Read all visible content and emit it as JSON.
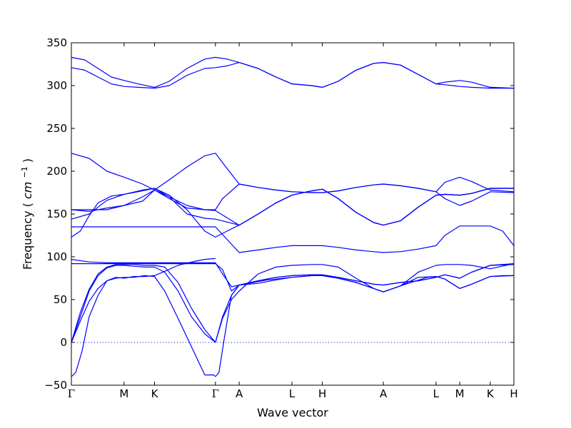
{
  "chart_data": {
    "type": "line",
    "title": "",
    "xlabel": "Wave vector",
    "ylabel": "Frequency",
    "ylabel_unit": "cm",
    "ylabel_unit_power": "−1",
    "ylim": [
      -50,
      350
    ],
    "y_ticks": [
      -50,
      0,
      50,
      100,
      150,
      200,
      250,
      300,
      350
    ],
    "grid": false,
    "legend": "none",
    "line_color": "#0000ff",
    "zero_line": {
      "y": 0,
      "style": "dotted"
    },
    "path_points": [
      {
        "label": "Γ",
        "x": 0.0
      },
      {
        "label": "M",
        "x": 0.593
      },
      {
        "label": "K",
        "x": 0.935
      },
      {
        "label": "Γ",
        "x": 1.62
      },
      {
        "label": "A",
        "x": 1.887
      },
      {
        "label": "L",
        "x": 2.48
      },
      {
        "label": "H",
        "x": 2.822
      },
      {
        "label": "A",
        "x": 3.508
      },
      {
        "label": "L",
        "x": 4.1
      },
      {
        "label": "M",
        "x": 4.367
      },
      {
        "label": "K",
        "x": 4.71
      },
      {
        "label": "H",
        "x": 4.976
      }
    ],
    "series": [
      {
        "x": [
          0,
          0.05,
          0.12,
          0.2,
          0.3,
          0.4,
          0.5,
          0.593,
          0.7,
          0.82,
          0.935,
          1.05,
          1.2,
          1.35,
          1.5,
          1.56,
          1.6,
          1.62
        ],
        "values": [
          -40,
          -35,
          -10,
          30,
          55,
          72,
          75,
          76,
          76,
          78,
          77,
          60,
          28,
          -5,
          -38,
          -38,
          -38,
          -40
        ]
      },
      {
        "x": [
          1.62,
          1.66,
          1.72,
          1.8,
          1.887,
          2.0,
          2.2,
          2.48,
          2.7,
          2.822,
          3.0,
          3.2,
          3.4,
          3.508,
          3.7,
          4.0,
          4.1,
          4.2,
          4.367,
          4.5,
          4.71,
          4.85,
          4.976
        ],
        "values": [
          -40,
          -35,
          5,
          55,
          67,
          69,
          73,
          76,
          78,
          78,
          75,
          70,
          63,
          59,
          66,
          76,
          77,
          74,
          63,
          68,
          77,
          78,
          78
        ]
      },
      {
        "x": [
          0,
          0.1,
          0.2,
          0.3,
          0.4,
          0.5,
          0.593,
          0.7,
          0.82,
          0.935,
          1.05,
          1.2,
          1.4,
          1.5,
          1.62
        ],
        "values": [
          0,
          25,
          48,
          63,
          72,
          76,
          75,
          77,
          77,
          78,
          83,
          90,
          95,
          97,
          98
        ]
      },
      {
        "x": [
          0,
          0.1,
          0.2,
          0.3,
          0.4,
          0.5,
          0.593,
          0.7,
          0.82,
          0.935,
          1.05,
          1.2,
          1.35,
          1.5,
          1.62
        ],
        "values": [
          0,
          30,
          60,
          78,
          87,
          90,
          90,
          89,
          88,
          88,
          82,
          60,
          30,
          10,
          0
        ]
      },
      {
        "x": [
          0,
          0.1,
          0.2,
          0.3,
          0.4,
          0.5,
          0.593,
          0.7,
          0.82,
          0.935,
          1.05,
          1.2,
          1.35,
          1.5,
          1.62
        ],
        "values": [
          0,
          35,
          62,
          80,
          88,
          91,
          91,
          91,
          90,
          90,
          88,
          70,
          40,
          15,
          0
        ]
      },
      {
        "x": [
          1.62,
          1.7,
          1.8,
          1.887,
          2.1,
          2.3,
          2.48,
          2.7,
          2.822,
          3.0,
          3.2,
          3.4,
          3.508,
          3.7,
          3.9,
          4.1,
          4.2,
          4.367,
          4.5,
          4.71,
          4.976
        ],
        "values": [
          0,
          30,
          55,
          67,
          72,
          76,
          78,
          79,
          79,
          76,
          72,
          68,
          67,
          70,
          72,
          76,
          79,
          75,
          82,
          90,
          92
        ]
      },
      {
        "x": [
          1.62,
          1.7,
          1.8,
          1.887,
          2.1,
          2.3,
          2.48,
          2.7,
          2.822,
          3.0,
          3.2,
          3.4,
          3.508,
          3.7,
          3.9,
          4.1,
          4.2,
          4.367,
          4.5,
          4.71,
          4.976
        ],
        "values": [
          0,
          28,
          50,
          60,
          80,
          88,
          90,
          91,
          91,
          88,
          75,
          63,
          59,
          66,
          82,
          90,
          91,
          91,
          90,
          86,
          92
        ]
      },
      {
        "x": [
          0,
          0.2,
          0.4,
          0.593,
          0.8,
          0.935,
          1.1,
          1.3,
          1.5,
          1.62,
          1.7,
          1.8,
          1.887,
          2.1,
          2.3,
          2.48,
          2.7,
          2.822,
          3.0,
          3.2,
          3.4,
          3.508,
          3.7,
          3.9,
          4.1,
          4.2,
          4.367,
          4.5,
          4.71,
          4.976
        ],
        "values": [
          92,
          92,
          92,
          92,
          92,
          92,
          92,
          92,
          92,
          92,
          85,
          60,
          67,
          72,
          76,
          78,
          79,
          79,
          76,
          72,
          68,
          67,
          70,
          72,
          76,
          79,
          75,
          82,
          90,
          91
        ]
      },
      {
        "x": [
          0,
          0.2,
          0.4,
          0.593,
          0.8,
          0.935,
          1.1,
          1.3,
          1.5,
          1.62,
          1.7,
          1.8,
          1.887,
          2.1,
          2.3,
          2.48,
          2.7,
          2.822,
          3.0,
          3.2,
          3.4,
          3.508,
          3.7,
          3.9,
          4.1,
          4.2,
          4.367,
          4.5,
          4.71,
          4.976
        ],
        "values": [
          97,
          94,
          93,
          93,
          93,
          93,
          93,
          93,
          93,
          93,
          80,
          65,
          67,
          69,
          73,
          76,
          78,
          78,
          75,
          70,
          63,
          59,
          66,
          76,
          77,
          74,
          63,
          68,
          77,
          78
        ]
      },
      {
        "x": [
          0,
          0.2,
          0.4,
          0.593,
          0.8,
          0.935,
          1.1,
          1.3,
          1.5,
          1.62,
          1.887,
          2.1,
          2.3,
          2.48,
          2.7,
          2.822,
          3.0,
          3.2,
          3.4,
          3.508,
          3.7,
          3.9,
          4.1,
          4.2,
          4.367,
          4.5,
          4.71,
          4.85,
          4.976
        ],
        "values": [
          135,
          135,
          135,
          135,
          135,
          135,
          135,
          135,
          135,
          135,
          105,
          108,
          111,
          113,
          113,
          113,
          111,
          108,
          106,
          105,
          106,
          109,
          113,
          125,
          136,
          136,
          136,
          130,
          113
        ]
      },
      {
        "x": [
          0,
          0.2,
          0.4,
          0.593,
          0.8,
          0.935,
          1.1,
          1.3,
          1.5,
          1.62,
          1.887,
          2.1,
          2.3,
          2.48,
          2.7,
          2.822,
          3.0,
          3.2,
          3.4,
          3.508,
          3.7,
          3.9,
          4.1,
          4.2,
          4.367,
          4.5,
          4.71,
          4.85,
          4.976
        ],
        "values": [
          155,
          153,
          157,
          160,
          165,
          178,
          170,
          160,
          155,
          154,
          137,
          150,
          163,
          172,
          177,
          179,
          168,
          152,
          140,
          137,
          142,
          158,
          172,
          173,
          172,
          174,
          180,
          180,
          180
        ]
      },
      {
        "x": [
          0,
          0.1,
          0.2,
          0.3,
          0.45,
          0.593,
          0.75,
          0.935,
          1.1,
          1.3,
          1.5,
          1.62,
          1.75,
          1.887,
          2.1,
          2.3,
          2.48,
          2.7,
          2.822,
          3.0,
          3.2,
          3.4,
          3.508,
          3.7,
          3.9,
          4.1,
          4.2,
          4.367,
          4.5,
          4.71,
          4.976
        ],
        "values": [
          123,
          130,
          148,
          163,
          171,
          173,
          176,
          180,
          172,
          155,
          130,
          123,
          130,
          137,
          150,
          163,
          172,
          177,
          179,
          168,
          152,
          140,
          137,
          142,
          158,
          172,
          173,
          172,
          174,
          180,
          180
        ]
      },
      {
        "x": [
          0,
          0.2,
          0.4,
          0.593,
          0.8,
          0.935,
          1.1,
          1.3,
          1.5,
          1.62,
          1.887,
          2.1,
          2.3,
          2.48,
          2.7,
          2.822,
          3.0,
          3.2,
          3.4,
          3.508,
          3.7,
          3.9,
          4.1,
          4.2,
          4.367,
          4.5,
          4.71,
          4.85,
          4.976
        ],
        "values": [
          144,
          150,
          166,
          173,
          178,
          180,
          170,
          150,
          145,
          144,
          137,
          150,
          163,
          172,
          177,
          179,
          168,
          152,
          140,
          137,
          142,
          158,
          172,
          173,
          172,
          174,
          180,
          180,
          180
        ]
      },
      {
        "x": [
          0,
          0.2,
          0.4,
          0.593,
          0.8,
          0.935,
          1.1,
          1.3,
          1.5,
          1.62,
          1.7,
          1.887,
          2.1,
          2.3,
          2.48,
          2.7,
          2.822,
          3.0,
          3.2,
          3.4,
          3.508,
          3.7,
          3.9,
          4.1,
          4.2,
          4.367,
          4.5,
          4.71,
          4.976
        ],
        "values": [
          221,
          215,
          200,
          193,
          185,
          178,
          190,
          205,
          218,
          221,
          210,
          185,
          181,
          178,
          176,
          175,
          175,
          177,
          181,
          184,
          185,
          183,
          180,
          176,
          187,
          193,
          188,
          178,
          176
        ]
      },
      {
        "x": [
          0,
          0.2,
          0.4,
          0.593,
          0.8,
          0.935,
          1.1,
          1.3,
          1.5,
          1.62,
          1.7,
          1.887,
          2.1,
          2.3,
          2.48,
          2.7,
          2.822,
          3.0,
          3.2,
          3.4,
          3.508,
          3.7,
          3.9,
          4.1,
          4.2,
          4.367,
          4.5,
          4.71,
          4.976
        ],
        "values": [
          155,
          155,
          155,
          160,
          170,
          178,
          168,
          157,
          155,
          155,
          168,
          185,
          181,
          178,
          176,
          175,
          175,
          177,
          181,
          184,
          185,
          183,
          180,
          176,
          168,
          160,
          165,
          176,
          175
        ]
      },
      {
        "x": [
          0,
          0.15,
          0.3,
          0.45,
          0.593,
          0.75,
          0.935,
          1.1,
          1.3,
          1.5,
          1.62,
          1.75,
          1.887,
          2.1,
          2.3,
          2.48,
          2.7,
          2.822,
          3.0,
          3.2,
          3.4,
          3.508,
          3.7,
          3.9,
          4.1,
          4.2,
          4.367,
          4.5,
          4.71,
          4.976
        ],
        "values": [
          333,
          330,
          320,
          310,
          306,
          302,
          298,
          305,
          320,
          331,
          333,
          331,
          327,
          320,
          310,
          302,
          300,
          298,
          305,
          318,
          326,
          327,
          324,
          313,
          302,
          304,
          306,
          304,
          298,
          297
        ]
      },
      {
        "x": [
          0,
          0.15,
          0.3,
          0.45,
          0.593,
          0.75,
          0.935,
          1.1,
          1.3,
          1.5,
          1.62,
          1.75,
          1.887,
          2.1,
          2.3,
          2.48,
          2.7,
          2.822,
          3.0,
          3.2,
          3.4,
          3.508,
          3.7,
          3.9,
          4.1,
          4.2,
          4.367,
          4.5,
          4.71,
          4.976
        ],
        "values": [
          321,
          318,
          310,
          302,
          299,
          298,
          297,
          300,
          312,
          320,
          321,
          323,
          327,
          320,
          310,
          302,
          300,
          298,
          305,
          318,
          326,
          327,
          324,
          313,
          302,
          301,
          299,
          298,
          297,
          297
        ]
      }
    ]
  }
}
